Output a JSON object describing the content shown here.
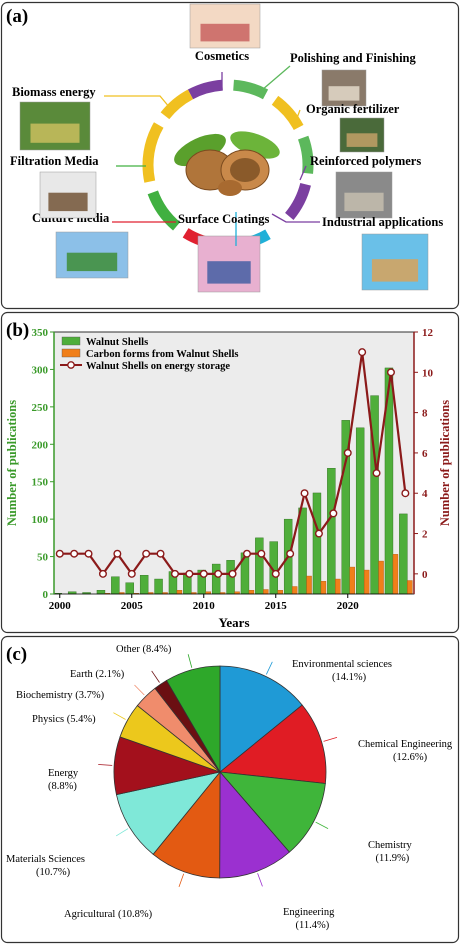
{
  "diagram": {
    "panel_label": "(a)",
    "nodes": [
      {
        "label": "Cosmetics"
      },
      {
        "label": "Polishing and Finishing"
      },
      {
        "label": "Organic fertilizer"
      },
      {
        "label": "Reinforced polymers"
      },
      {
        "label": "Industrial applications"
      },
      {
        "label": "Surface Coatings"
      },
      {
        "label": "Culture media"
      },
      {
        "label": "Filtration Media"
      },
      {
        "label": "Biomass energy"
      }
    ]
  },
  "chart_data": [
    {
      "type": "bar",
      "panel_label": "(b)",
      "x": [
        2000,
        2001,
        2002,
        2003,
        2004,
        2005,
        2006,
        2007,
        2008,
        2009,
        2010,
        2011,
        2012,
        2013,
        2014,
        2015,
        2016,
        2017,
        2018,
        2019,
        2020,
        2021,
        2022,
        2023,
        2024
      ],
      "xlim": [
        1999.6,
        2024.6
      ],
      "xticks": [
        2000,
        2005,
        2010,
        2015,
        2020
      ],
      "ylim": [
        0,
        350
      ],
      "yticks": [
        0,
        50,
        100,
        150,
        200,
        250,
        300,
        350
      ],
      "y2lim": [
        -1,
        12
      ],
      "y2ticks": [
        0,
        2,
        4,
        6,
        8,
        10,
        12
      ],
      "xlabel": "Years",
      "ylabel": "Number of publications",
      "y2label": "Number of publications",
      "legend": "upper left",
      "series": [
        {
          "name": "Walnut Shells",
          "color": "#4fae3a",
          "type": "bar",
          "values": [
            1,
            3,
            2,
            5,
            23,
            15,
            25,
            20,
            30,
            28,
            32,
            40,
            45,
            55,
            75,
            70,
            100,
            115,
            135,
            168,
            232,
            222,
            265,
            302,
            107
          ]
        },
        {
          "name": "Carbon forms from Walnut Shells",
          "color": "#f07f1a",
          "type": "bar",
          "values": [
            0,
            0,
            0,
            1,
            2,
            1,
            2,
            2,
            5,
            2,
            3,
            2,
            3,
            5,
            6,
            5,
            10,
            24,
            17,
            20,
            36,
            32,
            44,
            53,
            18
          ]
        },
        {
          "name": "Walnut Shells on energy storage",
          "color": "#8b1a1a",
          "type": "line",
          "axis": "y2",
          "values": [
            1,
            1,
            1,
            0,
            1,
            0,
            1,
            1,
            0,
            0,
            0,
            0,
            0,
            1,
            1,
            0,
            1,
            4,
            2,
            3,
            6,
            11,
            5,
            10,
            4
          ]
        }
      ]
    },
    {
      "type": "pie",
      "panel_label": "(c)",
      "categories": [
        "Environmental sciences",
        "Chemical Engineering",
        "Chemistry",
        "Engineering",
        "Agricultural",
        "Materials Sciences",
        "Energy",
        "Physics",
        "Biochemistry",
        "Earth",
        "Other"
      ],
      "values": [
        14.1,
        12.6,
        11.9,
        11.4,
        10.8,
        10.7,
        8.8,
        5.4,
        3.7,
        2.1,
        8.4
      ],
      "value_labels": [
        "(14.1%)",
        "(12.6%)",
        "(11.9%)",
        "(11.4%)",
        "(10.8%)",
        "(10.7%)",
        "(8.8%)",
        "(5.4%)",
        "(3.7%)",
        "(2.1%)",
        "(8.4%)"
      ],
      "colors": [
        "#1f9ad6",
        "#e01c24",
        "#3fb53a",
        "#9b30d0",
        "#e35a12",
        "#7fe8d8",
        "#a3101c",
        "#ecc81c",
        "#f08c6c",
        "#6b0f12",
        "#2ea82a"
      ]
    }
  ]
}
